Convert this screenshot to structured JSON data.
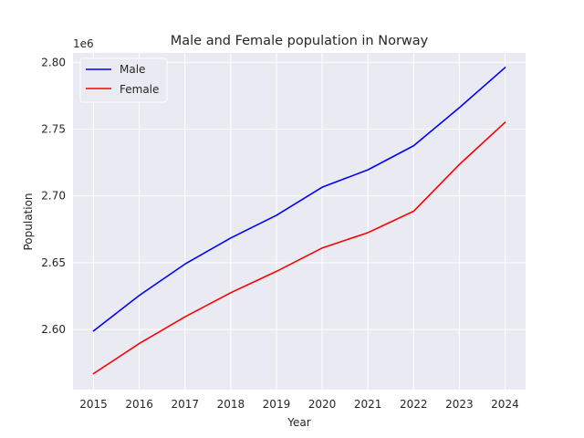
{
  "chart_data": {
    "type": "line",
    "title": "Male and Female population in Norway",
    "xlabel": "Year",
    "ylabel": "Population",
    "offset_label": "1e6",
    "y_scale_factor": 1000000,
    "x": [
      2015,
      2016,
      2017,
      2018,
      2019,
      2020,
      2021,
      2022,
      2023,
      2024
    ],
    "x_tick_labels": [
      "2015",
      "2016",
      "2017",
      "2018",
      "2019",
      "2020",
      "2021",
      "2022",
      "2023",
      "2024"
    ],
    "y_ticks": [
      2600000,
      2650000,
      2700000,
      2750000,
      2800000
    ],
    "y_tick_labels": [
      "2.60",
      "2.65",
      "2.70",
      "2.75",
      "2.80"
    ],
    "xlim": [
      2014.55,
      2024.45
    ],
    "ylim": [
      2555000,
      2807000
    ],
    "grid": true,
    "legend_position": "top-left",
    "series": [
      {
        "name": "Male",
        "color": "#0000ff",
        "values": [
          2599000,
          2625500,
          2649000,
          2668500,
          2685500,
          2706500,
          2719500,
          2737500,
          2766000,
          2796000
        ]
      },
      {
        "name": "Female",
        "color": "#ff0000",
        "values": [
          2567000,
          2589500,
          2609500,
          2627500,
          2643500,
          2661000,
          2672500,
          2688500,
          2723500,
          2755000
        ]
      }
    ]
  }
}
